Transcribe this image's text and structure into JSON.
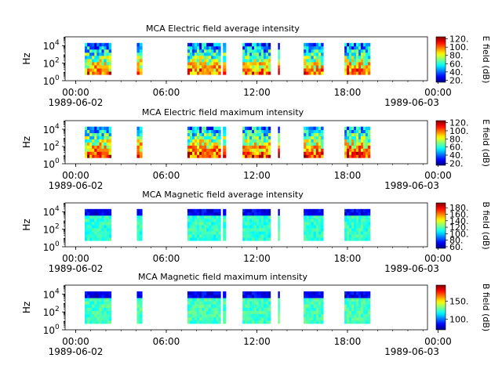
{
  "chart_data": [
    {
      "type": "heatmap",
      "title": "MCA  Electric field average intensity",
      "ylabel": "Hz",
      "yscale": "log",
      "ylim": [
        1,
        100000
      ],
      "yticks": [
        {
          "v": 1,
          "b": "10",
          "e": "0"
        },
        {
          "v": 100,
          "b": "10",
          "e": "2"
        },
        {
          "v": 10000,
          "b": "10",
          "e": "4"
        }
      ],
      "xlim": [
        "1989-06-02T00:00",
        "1989-06-03T00:00"
      ],
      "xticks": [
        "00:00",
        "06:00",
        "12:00",
        "18:00",
        "00:00"
      ],
      "xdates": [
        "1989-06-02",
        "1989-06-03"
      ],
      "colorbar": {
        "label": "E field (dB)",
        "range": [
          15,
          125
        ],
        "ticks": [
          "20.",
          "40.",
          "60.",
          "80.",
          "100.",
          "120."
        ],
        "tick_values": [
          20,
          40,
          60,
          80,
          100,
          120
        ],
        "colormap": "jet"
      },
      "field": "E",
      "data_start_hours": [
        1.3,
        4.75,
        8.1,
        10.45,
        11.75,
        14.1,
        15.8,
        18.5
      ],
      "data_end_hours": [
        3.05,
        5.1,
        10.3,
        10.65,
        13.6,
        14.2,
        17.1,
        20.2
      ],
      "freq_range_hz": [
        5,
        20000
      ]
    },
    {
      "type": "heatmap",
      "title": "MCA  Electric field maximum intensity",
      "ylabel": "Hz",
      "yscale": "log",
      "ylim": [
        1,
        100000
      ],
      "yticks": [
        {
          "v": 1,
          "b": "10",
          "e": "0"
        },
        {
          "v": 100,
          "b": "10",
          "e": "2"
        },
        {
          "v": 10000,
          "b": "10",
          "e": "4"
        }
      ],
      "xlim": [
        "1989-06-02T00:00",
        "1989-06-03T00:00"
      ],
      "xticks": [
        "00:00",
        "06:00",
        "12:00",
        "18:00",
        "00:00"
      ],
      "xdates": [
        "1989-06-02",
        "1989-06-03"
      ],
      "colorbar": {
        "label": "E field (dB)",
        "range": [
          15,
          125
        ],
        "ticks": [
          "20.",
          "40.",
          "60.",
          "80.",
          "100.",
          "120."
        ],
        "tick_values": [
          20,
          40,
          60,
          80,
          100,
          120
        ],
        "colormap": "jet"
      },
      "field": "E",
      "data_start_hours": [
        1.3,
        4.75,
        8.1,
        10.45,
        11.75,
        14.1,
        15.8,
        18.5
      ],
      "data_end_hours": [
        3.05,
        5.1,
        10.3,
        10.65,
        13.6,
        14.2,
        17.1,
        20.2
      ],
      "freq_range_hz": [
        5,
        20000
      ]
    },
    {
      "type": "heatmap",
      "title": "MCA  Magnetic field average intensity",
      "ylabel": "Hz",
      "yscale": "log",
      "ylim": [
        1,
        100000
      ],
      "yticks": [
        {
          "v": 1,
          "b": "10",
          "e": "0"
        },
        {
          "v": 100,
          "b": "10",
          "e": "2"
        },
        {
          "v": 10000,
          "b": "10",
          "e": "4"
        }
      ],
      "xlim": [
        "1989-06-02T00:00",
        "1989-06-03T00:00"
      ],
      "xticks": [
        "00:00",
        "06:00",
        "12:00",
        "18:00",
        "00:00"
      ],
      "xdates": [
        "1989-06-02",
        "1989-06-03"
      ],
      "colorbar": {
        "label": "B field (dB)",
        "range": [
          55,
          195
        ],
        "ticks": [
          "60.",
          "80.",
          "100.",
          "120.",
          "140.",
          "160.",
          "180."
        ],
        "tick_values": [
          60,
          80,
          100,
          120,
          140,
          160,
          180
        ],
        "colormap": "jet"
      },
      "field": "B",
      "data_start_hours": [
        1.3,
        4.75,
        8.1,
        10.45,
        11.75,
        14.1,
        15.8,
        18.5
      ],
      "data_end_hours": [
        3.05,
        5.1,
        10.3,
        10.65,
        13.6,
        14.2,
        17.1,
        20.2
      ],
      "freq_range_hz": [
        5,
        20000
      ]
    },
    {
      "type": "heatmap",
      "title": "MCA  Magnetic field maximum intensity",
      "ylabel": "Hz",
      "yscale": "log",
      "ylim": [
        1,
        100000
      ],
      "yticks": [
        {
          "v": 1,
          "b": "10",
          "e": "0"
        },
        {
          "v": 100,
          "b": "10",
          "e": "2"
        },
        {
          "v": 10000,
          "b": "10",
          "e": "4"
        }
      ],
      "xlim": [
        "1989-06-02T00:00",
        "1989-06-03T00:00"
      ],
      "xticks": [
        "00:00",
        "06:00",
        "12:00",
        "18:00",
        "00:00"
      ],
      "xdates": [
        "1989-06-02",
        "1989-06-03"
      ],
      "colorbar": {
        "label": "B field (dB)",
        "range": [
          70,
          195
        ],
        "ticks": [
          "100.",
          "150."
        ],
        "tick_values": [
          100,
          150
        ],
        "colormap": "jet"
      },
      "field": "B",
      "data_start_hours": [
        1.3,
        4.75,
        8.1,
        10.45,
        11.75,
        14.1,
        15.8,
        18.5
      ],
      "data_end_hours": [
        3.05,
        5.1,
        10.3,
        10.65,
        13.6,
        14.2,
        17.1,
        20.2
      ],
      "freq_range_hz": [
        5,
        20000
      ]
    }
  ]
}
